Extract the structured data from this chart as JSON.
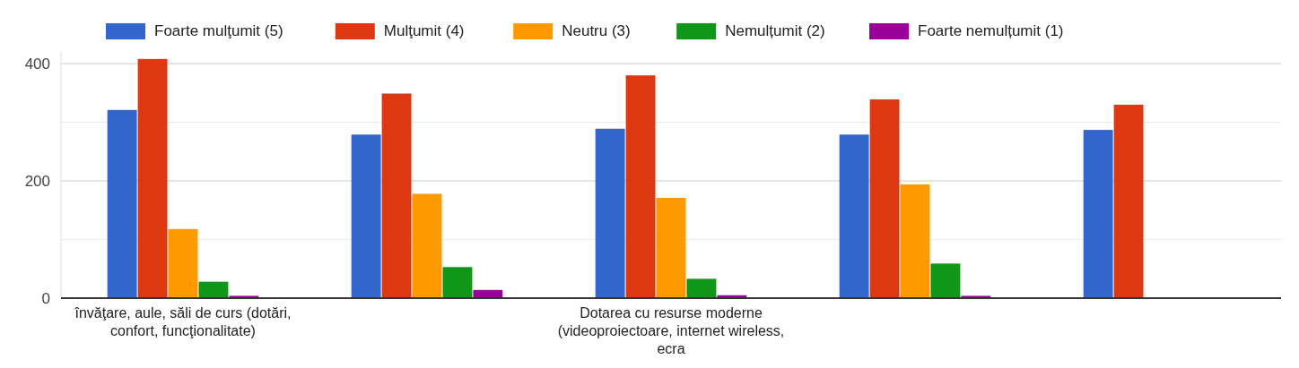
{
  "chart_data": {
    "type": "bar",
    "categories": [
      "învăţare, aule, săli de curs (dotări, confort, funcţionalitate)",
      null,
      "Dotarea cu resurse moderne (videoproiectoare, internet wireless, ecra",
      null,
      null
    ],
    "series": [
      {
        "name": "Foarte mulţumit (5)",
        "color": "#3366cc",
        "values": [
          321,
          279,
          289,
          279,
          287
        ]
      },
      {
        "name": "Mulţumit (4)",
        "color": "#dc3912",
        "values": [
          408,
          349,
          380,
          339,
          330
        ]
      },
      {
        "name": "Neutru (3)",
        "color": "#ff9900",
        "values": [
          118,
          178,
          171,
          194,
          null
        ]
      },
      {
        "name": "Nemulțumit (2)",
        "color": "#109618",
        "values": [
          28,
          53,
          33,
          59,
          null
        ]
      },
      {
        "name": "Foarte nemulțumit (1)",
        "color": "#990099",
        "values": [
          4,
          14,
          5,
          4,
          null
        ]
      }
    ],
    "ylim": [
      0,
      420
    ],
    "yticks": [
      0,
      {
        "value": 100,
        "label": null
      },
      200,
      {
        "value": 300,
        "label": null
      },
      400
    ],
    "grid": true,
    "legend": "top"
  }
}
